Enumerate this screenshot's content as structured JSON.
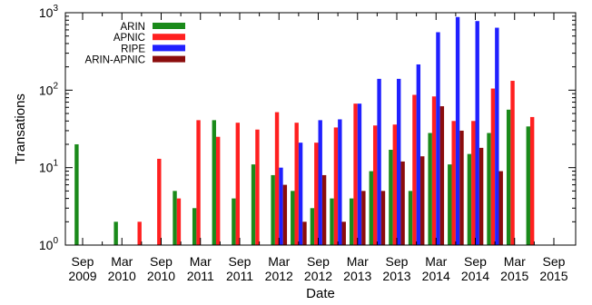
{
  "chart_data": {
    "type": "bar",
    "xlabel": "Date",
    "ylabel": "Transations",
    "ylim": [
      1,
      1000
    ],
    "yscale": "log",
    "legend_position": "top-left",
    "y_ticks": [
      {
        "value": 1,
        "base": "10",
        "exp": "0"
      },
      {
        "value": 10,
        "base": "10",
        "exp": "1"
      },
      {
        "value": 100,
        "base": "10",
        "exp": "2"
      },
      {
        "value": 1000,
        "base": "10",
        "exp": "3"
      }
    ],
    "x_ticks": [
      {
        "line1": "Sep",
        "line2": "2009"
      },
      {
        "line1": "Mar",
        "line2": "2010"
      },
      {
        "line1": "Sep",
        "line2": "2010"
      },
      {
        "line1": "Mar",
        "line2": "2011"
      },
      {
        "line1": "Sep",
        "line2": "2011"
      },
      {
        "line1": "Mar",
        "line2": "2012"
      },
      {
        "line1": "Sep",
        "line2": "2012"
      },
      {
        "line1": "Mar",
        "line2": "2013"
      },
      {
        "line1": "Sep",
        "line2": "2013"
      },
      {
        "line1": "Mar",
        "line2": "2014"
      },
      {
        "line1": "Sep",
        "line2": "2014"
      },
      {
        "line1": "Mar",
        "line2": "2015"
      },
      {
        "line1": "Sep",
        "line2": "2015"
      }
    ],
    "categories": [
      "Sep 2009",
      "Dec 2009",
      "Mar 2010",
      "Jun 2010",
      "Sep 2010",
      "Dec 2010",
      "Mar 2011",
      "Jun 2011",
      "Sep 2011",
      "Dec 2011",
      "Mar 2012",
      "Jun 2012",
      "Sep 2012",
      "Dec 2012",
      "Mar 2013",
      "Jun 2013",
      "Sep 2013",
      "Dec 2013",
      "Mar 2014",
      "Jun 2014",
      "Sep 2014",
      "Dec 2014",
      "Mar 2015",
      "Jun 2015",
      "Sep 2015"
    ],
    "series": [
      {
        "name": "ARIN",
        "color": "#1a8a1a",
        "values": [
          20,
          null,
          2,
          null,
          null,
          5,
          3,
          41,
          4,
          11,
          8,
          5,
          3,
          4,
          4,
          9,
          17,
          5,
          28,
          11,
          15,
          28,
          56,
          34,
          null
        ]
      },
      {
        "name": "APNIC",
        "color": "#ff2020",
        "values": [
          null,
          null,
          null,
          2,
          13,
          4,
          41,
          25,
          38,
          31,
          52,
          38,
          21,
          33,
          67,
          35,
          36,
          87,
          83,
          40,
          40,
          105,
          132,
          45,
          null
        ]
      },
      {
        "name": "RIPE",
        "color": "#2020ff",
        "values": [
          null,
          null,
          null,
          null,
          null,
          null,
          null,
          null,
          null,
          null,
          10,
          21,
          41,
          42,
          67,
          140,
          140,
          215,
          560,
          880,
          780,
          640,
          null,
          null,
          null
        ]
      },
      {
        "name": "ARIN-APNIC",
        "color": "#8b0d0d",
        "values": [
          null,
          null,
          null,
          null,
          null,
          null,
          null,
          null,
          null,
          null,
          6,
          2,
          8,
          2,
          5,
          5,
          12,
          14,
          62,
          30,
          18,
          9,
          null,
          null,
          null
        ]
      }
    ]
  }
}
